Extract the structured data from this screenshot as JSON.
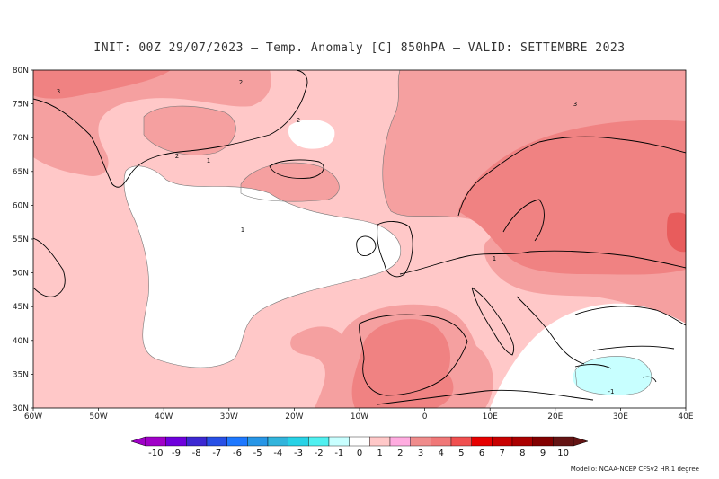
{
  "title": "INIT: 00Z 29/07/2023 – Temp. Anomaly [C] 850hPA – VALID: SETTEMBRE 2023",
  "credit": "Modello: NOAA-NCEP CFSv2 HR 1 degree",
  "axes": {
    "lat_ticks": [
      "80N",
      "75N",
      "70N",
      "65N",
      "60N",
      "55N",
      "50N",
      "45N",
      "40N",
      "35N",
      "30N"
    ],
    "lon_ticks": [
      "60W",
      "50W",
      "40W",
      "30W",
      "20W",
      "10W",
      "0",
      "10E",
      "20E",
      "30E",
      "40E"
    ],
    "lon_range": [
      -60,
      40
    ],
    "lat_range": [
      30,
      80
    ]
  },
  "legend": {
    "labels": [
      "-10",
      "-9",
      "-8",
      "-7",
      "-6",
      "-5",
      "-4",
      "-3",
      "-2",
      "-1",
      "0",
      "1",
      "2",
      "3",
      "4",
      "5",
      "6",
      "7",
      "8",
      "9",
      "10"
    ],
    "colors": [
      "#a000c8",
      "#6e00dc",
      "#3c28d2",
      "#2850e6",
      "#1e78ff",
      "#2896e6",
      "#32b4dc",
      "#28d2e6",
      "#50f0f0",
      "#c8ffff",
      "#ffffff",
      "#ffc8c8",
      "#fface0",
      "#f08c8c",
      "#f07878",
      "#f05050",
      "#e60000",
      "#c80000",
      "#aa0000",
      "#820000",
      "#641414"
    ]
  },
  "contour_labels": [
    "3",
    "2",
    "2",
    "1",
    "1",
    "2",
    "3",
    "1",
    "-1"
  ],
  "colors": {
    "anom_0": "#ffffff",
    "anom_1": "#ffc8c8",
    "anom_2": "#f5a0a0",
    "anom_3": "#f08282",
    "anom_4": "#e85c5c",
    "anom_neg1": "#c8ffff",
    "coast": "#000000"
  }
}
